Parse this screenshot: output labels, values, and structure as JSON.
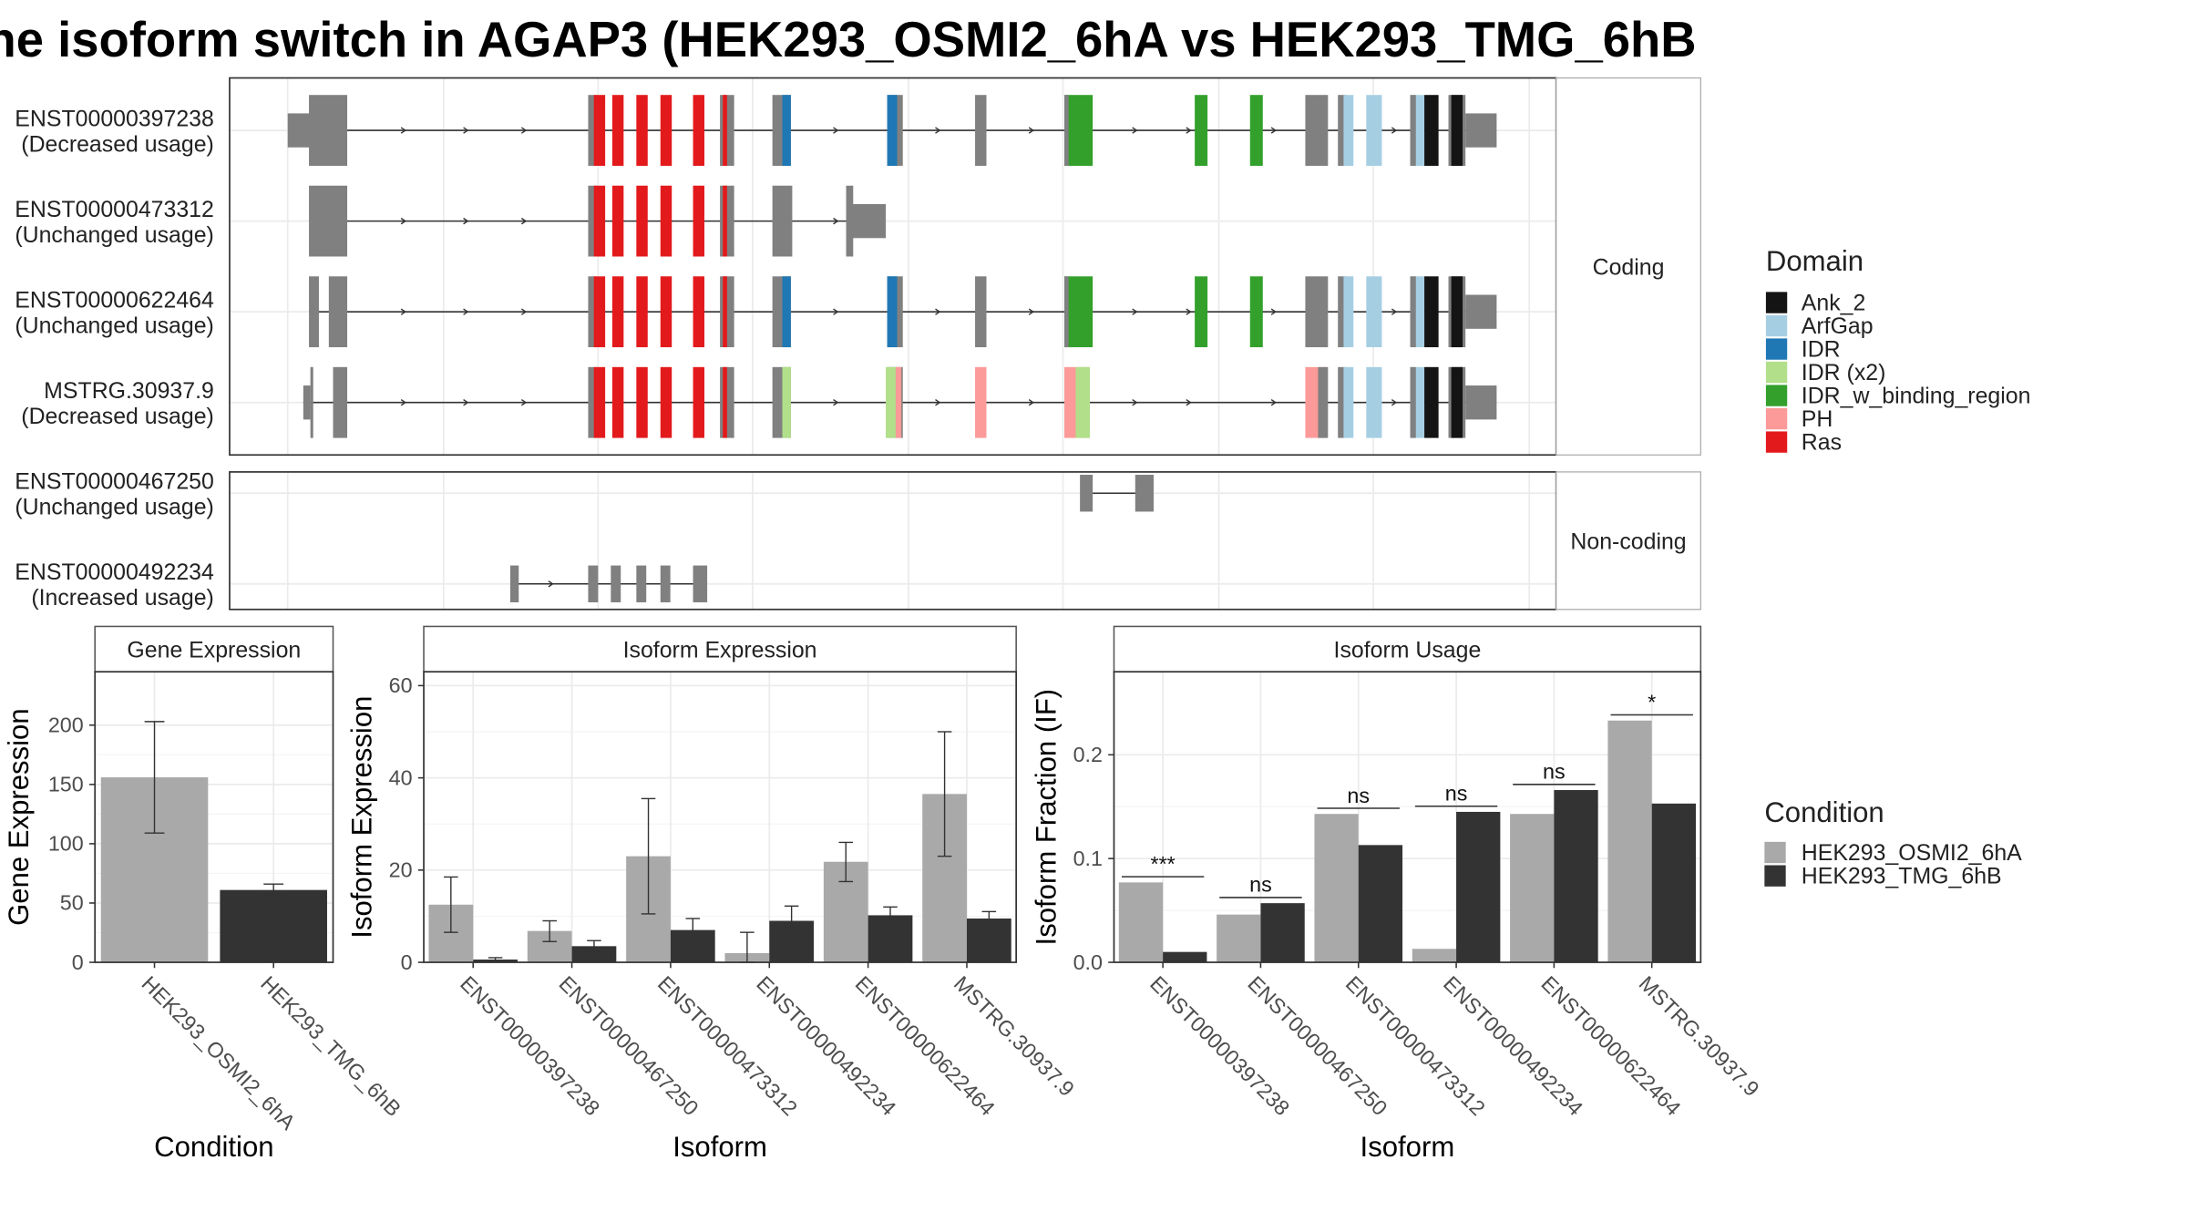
{
  "title": "he isoform switch in AGAP3 (HEK293_OSMI2_6hA vs HEK293_TMG_6hB",
  "structure": {
    "coding_strip": "Coding",
    "noncoding_strip": "Non-coding",
    "legend_title": "Domain",
    "legend": [
      {
        "label": "Ank_2",
        "color": "#141414"
      },
      {
        "label": "ArfGap",
        "color": "#a6cee3"
      },
      {
        "label": "IDR",
        "color": "#1f78b4"
      },
      {
        "label": "IDR (x2)",
        "color": "#b2df8a"
      },
      {
        "label": "IDR_w_binding_region",
        "color": "#33a02c"
      },
      {
        "label": "PH",
        "color": "#fb9a99"
      },
      {
        "label": "Ras",
        "color": "#e31a1c"
      }
    ],
    "coding": [
      {
        "id": "ENST00000397238",
        "usage": "(Decreased usage)"
      },
      {
        "id": "ENST00000473312",
        "usage": "(Unchanged usage)"
      },
      {
        "id": "ENST00000622464",
        "usage": "(Unchanged usage)"
      },
      {
        "id": "MSTRG.30937.9",
        "usage": "(Decreased usage)"
      }
    ],
    "noncoding": [
      {
        "id": "ENST00000467250",
        "usage": "(Unchanged usage)"
      },
      {
        "id": "ENST00000492234",
        "usage": "(Increased usage)"
      }
    ]
  },
  "chart_data": [
    {
      "type": "bar",
      "title": "Gene Expression",
      "xlabel": "Condition",
      "ylabel": "Gene Expression",
      "categories": [
        "HEK293_OSMI2_6hA",
        "HEK293_TMG_6hB"
      ],
      "values": [
        156,
        61
      ],
      "error_low": [
        109,
        57
      ],
      "error_high": [
        203,
        66
      ],
      "yticks": [
        0,
        50,
        100,
        150,
        200
      ],
      "ylim": [
        0,
        245
      ]
    },
    {
      "type": "bar",
      "title": "Isoform Expression",
      "xlabel": "Isoform",
      "ylabel": "Isoform Expression",
      "categories": [
        "ENST00000397238",
        "ENST00000467250",
        "ENST00000473312",
        "ENST00000492234",
        "ENST00000622464",
        "MSTRG.30937.9"
      ],
      "series": [
        {
          "name": "HEK293_OSMI2_6hA",
          "color": "#a9a9a9",
          "values": [
            12.5,
            6.8,
            23.0,
            2.0,
            21.8,
            36.5
          ],
          "error_low": [
            6.5,
            4.5,
            10.5,
            0,
            17.5,
            23.0
          ],
          "error_high": [
            18.5,
            9.0,
            35.5,
            6.5,
            26.0,
            50.0
          ]
        },
        {
          "name": "HEK293_TMG_6hB",
          "color": "#333333",
          "values": [
            0.6,
            3.5,
            7.0,
            9.0,
            10.2,
            9.5
          ],
          "error_low": [
            0.2,
            2.5,
            4.5,
            5.8,
            8.5,
            8.0
          ],
          "error_high": [
            1.0,
            4.7,
            9.5,
            12.2,
            12.0,
            11.0
          ]
        }
      ],
      "yticks": [
        0,
        20,
        40,
        60
      ],
      "ylim": [
        0,
        63
      ]
    },
    {
      "type": "bar",
      "title": "Isoform Usage",
      "xlabel": "Isoform",
      "ylabel": "Isoform Fraction (IF)",
      "categories": [
        "ENST00000397238",
        "ENST00000467250",
        "ENST00000473312",
        "ENST00000492234",
        "ENST00000622464",
        "MSTRG.30937.9"
      ],
      "series": [
        {
          "name": "HEK293_OSMI2_6hA",
          "color": "#a9a9a9",
          "values": [
            0.077,
            0.046,
            0.143,
            0.013,
            0.143,
            0.233
          ]
        },
        {
          "name": "HEK293_TMG_6hB",
          "color": "#333333",
          "values": [
            0.01,
            0.057,
            0.113,
            0.145,
            0.166,
            0.153
          ]
        }
      ],
      "significance": [
        "***",
        "ns",
        "ns",
        "ns",
        "ns",
        "*"
      ],
      "yticks": [
        0.0,
        0.1,
        0.2
      ],
      "yticklabels": [
        "0.0",
        "0.1",
        "0.2"
      ],
      "ylim": [
        0,
        0.28
      ]
    }
  ],
  "condition_legend": {
    "title": "Condition",
    "items": [
      {
        "label": "HEK293_OSMI2_6hA",
        "color": "#a9a9a9"
      },
      {
        "label": "HEK293_TMG_6hB",
        "color": "#333333"
      }
    ]
  }
}
